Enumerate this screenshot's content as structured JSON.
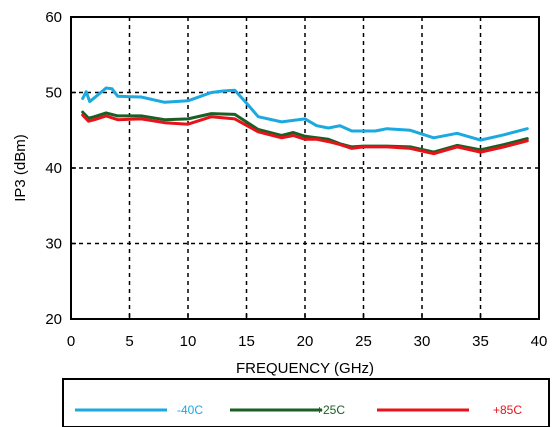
{
  "chart_data": {
    "type": "line",
    "title": "",
    "xlabel": "FREQUENCY (GHz)",
    "ylabel": "IP3 (dBm)",
    "xlim": [
      0,
      40
    ],
    "ylim": [
      20,
      60
    ],
    "xticks": [
      0,
      5,
      10,
      15,
      20,
      25,
      30,
      35,
      40
    ],
    "yticks": [
      20,
      30,
      40,
      50,
      60
    ],
    "xtick_labels": [
      "0",
      "5",
      "10",
      "15",
      "20",
      "25",
      "30",
      "35",
      "40"
    ],
    "ytick_labels": [
      "20",
      "30",
      "40",
      "50",
      "60"
    ],
    "grid": true,
    "legend_position": "bottom",
    "series": [
      {
        "name": "-40C",
        "color": "#1ba9df",
        "x": [
          1,
          1.3,
          1.6,
          2,
          3,
          3.5,
          4,
          6,
          8,
          10,
          12,
          13,
          14,
          15,
          16,
          18,
          19,
          20,
          21,
          22,
          23,
          24,
          25,
          26,
          27,
          29,
          31,
          33,
          35,
          37,
          39
        ],
        "y": [
          49.2,
          50.1,
          48.8,
          49.3,
          50.6,
          50.5,
          49.5,
          49.4,
          48.7,
          48.9,
          50.0,
          50.2,
          50.3,
          48.6,
          46.8,
          46.1,
          46.3,
          46.5,
          45.6,
          45.3,
          45.6,
          44.9,
          44.9,
          44.9,
          45.2,
          45.0,
          44.0,
          44.6,
          43.7,
          44.4,
          45.2
        ]
      },
      {
        "name": "+25C",
        "color": "#1a5f26",
        "x": [
          1,
          1.5,
          2,
          3,
          4,
          6,
          8,
          10,
          12,
          14,
          16,
          18,
          19,
          20,
          21,
          22,
          23,
          24,
          25,
          27,
          29,
          31,
          33,
          35,
          37,
          39
        ],
        "y": [
          47.4,
          46.6,
          46.8,
          47.3,
          46.9,
          46.9,
          46.4,
          46.5,
          47.2,
          47.1,
          45.1,
          44.3,
          44.7,
          44.2,
          44.0,
          43.8,
          43.2,
          42.8,
          42.9,
          42.9,
          42.8,
          42.1,
          43.0,
          42.4,
          43.1,
          43.9
        ]
      },
      {
        "name": "+85C",
        "color": "#e8131a",
        "x": [
          1,
          1.5,
          2,
          3,
          4,
          6,
          8,
          10,
          12,
          14,
          16,
          18,
          19,
          20,
          21,
          22,
          23,
          24,
          25,
          27,
          29,
          31,
          33,
          35,
          37,
          39
        ],
        "y": [
          47.0,
          46.2,
          46.4,
          46.9,
          46.4,
          46.5,
          46.0,
          45.8,
          46.8,
          46.5,
          44.8,
          44.0,
          44.3,
          43.8,
          43.8,
          43.5,
          43.1,
          42.6,
          42.8,
          42.8,
          42.6,
          41.9,
          42.8,
          42.1,
          42.8,
          43.6
        ]
      }
    ]
  }
}
